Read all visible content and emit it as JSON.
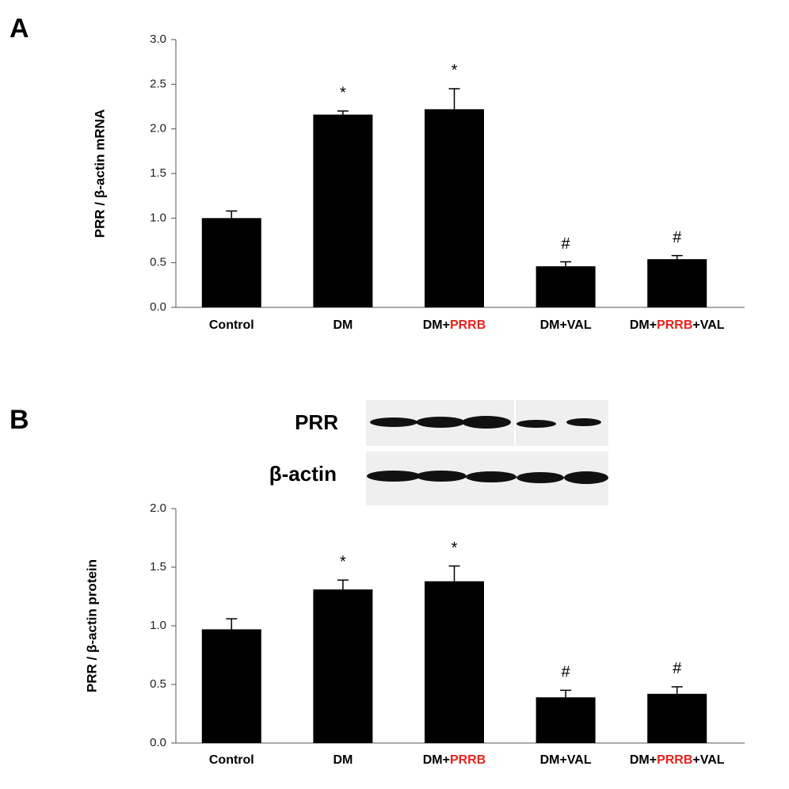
{
  "chart_data": [
    {
      "type": "bar",
      "panel_label": "A",
      "y_label": "PRR / β-actin  mRNA",
      "categories": [
        [
          "Control"
        ],
        [
          "DM"
        ],
        [
          "DM+",
          {
            "text": "PRRB",
            "color": "#e8221b"
          }
        ],
        [
          "DM+VAL"
        ],
        [
          "DM+",
          {
            "text": "PRRB",
            "color": "#e8221b"
          },
          "+VAL"
        ]
      ],
      "values": [
        1.0,
        2.16,
        2.22,
        0.46,
        0.54
      ],
      "errors": [
        0.08,
        0.04,
        0.23,
        0.05,
        0.04
      ],
      "annotations": [
        null,
        "*",
        "*",
        "#",
        "#"
      ],
      "color": "#000000",
      "ylim": [
        0,
        3
      ],
      "yticks": [
        {
          "value": 0,
          "label": "0.0"
        },
        0.5,
        {
          "value": 1,
          "label": "1.0"
        },
        1.5,
        {
          "value": 2,
          "label": "2.0"
        },
        2.5,
        {
          "value": 3,
          "label": "3.0"
        }
      ],
      "grid": false
    },
    {
      "type": "bar",
      "panel_label": "B",
      "y_label": "PRR / β-actin  protein",
      "blot_labels": [
        "PRR",
        "β-actin"
      ],
      "categories": [
        [
          "Control"
        ],
        [
          "DM"
        ],
        [
          "DM+",
          {
            "text": "PRRB",
            "color": "#e8221b"
          }
        ],
        [
          "DM+VAL"
        ],
        [
          "DM+",
          {
            "text": "PRRB",
            "color": "#e8221b"
          },
          "+VAL"
        ]
      ],
      "values": [
        0.97,
        1.31,
        1.38,
        0.39,
        0.42
      ],
      "errors": [
        0.09,
        0.08,
        0.13,
        0.06,
        0.06
      ],
      "annotations": [
        null,
        "*",
        "*",
        "#",
        "#"
      ],
      "color": "#000000",
      "ylim": [
        0,
        2
      ],
      "yticks": [
        {
          "value": 0,
          "label": "0.0"
        },
        0.5,
        {
          "value": 1,
          "label": "1.0"
        },
        1.5,
        {
          "value": 2,
          "label": "2.0"
        }
      ],
      "grid": false
    }
  ]
}
